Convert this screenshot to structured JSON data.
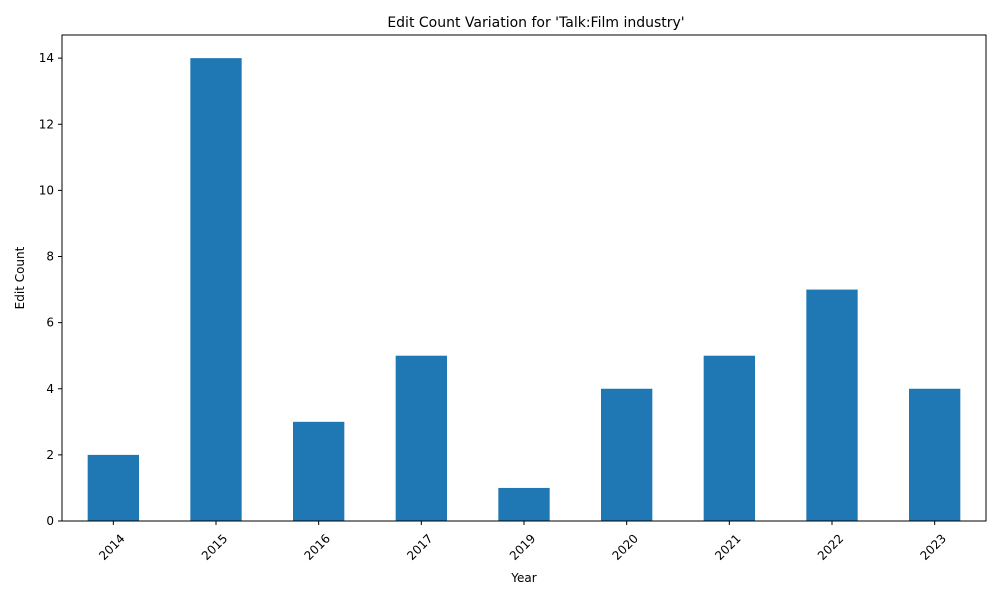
{
  "chart_data": {
    "type": "bar",
    "title": "Edit Count Variation for 'Talk:Film industry'",
    "xlabel": "Year",
    "ylabel": "Edit Count",
    "categories": [
      "2014",
      "2015",
      "2016",
      "2017",
      "2019",
      "2020",
      "2021",
      "2022",
      "2023"
    ],
    "values": [
      2,
      14,
      3,
      5,
      1,
      4,
      5,
      7,
      4
    ],
    "ylim": [
      0,
      14.7
    ],
    "yticks": [
      0,
      2,
      4,
      6,
      8,
      10,
      12,
      14
    ],
    "bar_color": "#1f77b4",
    "grid": false,
    "xtick_rotation": 45
  }
}
